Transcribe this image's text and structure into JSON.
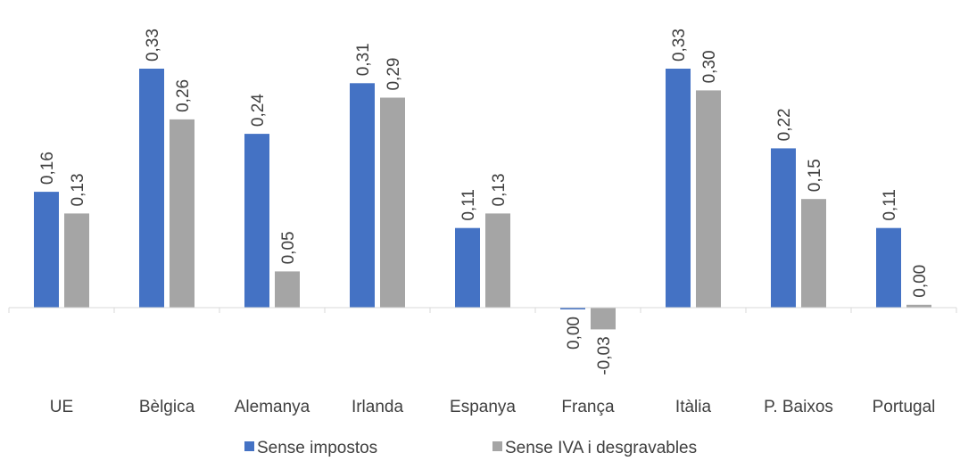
{
  "chart_data": {
    "type": "bar",
    "categories": [
      "UE",
      "Bèlgica",
      "Alemanya",
      "Irlanda",
      "Espanya",
      "França",
      "Itàlia",
      "P. Baixos",
      "Portugal"
    ],
    "series": [
      {
        "name": "Sense impostos",
        "color": "#4472C4",
        "values": [
          0.16,
          0.33,
          0.24,
          0.31,
          0.11,
          -0.002,
          0.33,
          0.22,
          0.11
        ],
        "labels": [
          "0,16",
          "0,33",
          "0,24",
          "0,31",
          "0,11",
          "0,00",
          "0,33",
          "0,22",
          "0,11"
        ]
      },
      {
        "name": "Sense IVA i desgravables",
        "color": "#A5A5A5",
        "values": [
          0.13,
          0.26,
          0.05,
          0.29,
          0.13,
          -0.03,
          0.3,
          0.15,
          0.004
        ],
        "labels": [
          "0,13",
          "0,26",
          "0,05",
          "0,29",
          "0,13",
          "-0,03",
          "0,30",
          "0,15",
          "0,00"
        ]
      }
    ],
    "ylim": [
      -0.03,
      0.33
    ],
    "grid": false,
    "legend": "bottom",
    "axis_color": "#D9D9D9"
  }
}
